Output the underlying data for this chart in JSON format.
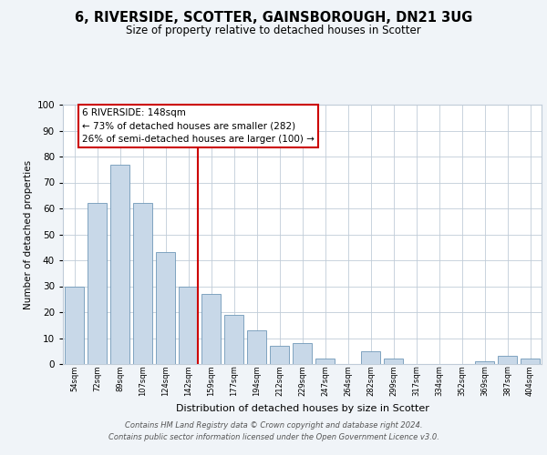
{
  "title": "6, RIVERSIDE, SCOTTER, GAINSBOROUGH, DN21 3UG",
  "subtitle": "Size of property relative to detached houses in Scotter",
  "xlabel": "Distribution of detached houses by size in Scotter",
  "ylabel": "Number of detached properties",
  "bar_color": "#c8d8e8",
  "bar_edge_color": "#7098b8",
  "background_color": "#f0f4f8",
  "plot_bg_color": "#ffffff",
  "grid_color": "#c0ccd8",
  "vline_color": "#cc0000",
  "annotation_title": "6 RIVERSIDE: 148sqm",
  "annotation_line1": "← 73% of detached houses are smaller (282)",
  "annotation_line2": "26% of semi-detached houses are larger (100) →",
  "annotation_box_color": "#ffffff",
  "annotation_box_edge": "#cc0000",
  "categories": [
    "54sqm",
    "72sqm",
    "89sqm",
    "107sqm",
    "124sqm",
    "142sqm",
    "159sqm",
    "177sqm",
    "194sqm",
    "212sqm",
    "229sqm",
    "247sqm",
    "264sqm",
    "282sqm",
    "299sqm",
    "317sqm",
    "334sqm",
    "352sqm",
    "369sqm",
    "387sqm",
    "404sqm"
  ],
  "values": [
    30,
    62,
    77,
    62,
    43,
    30,
    27,
    19,
    13,
    7,
    8,
    2,
    0,
    5,
    2,
    0,
    0,
    0,
    1,
    3,
    2
  ],
  "ylim": [
    0,
    100
  ],
  "yticks": [
    0,
    10,
    20,
    30,
    40,
    50,
    60,
    70,
    80,
    90,
    100
  ],
  "vline_category": "142sqm",
  "footer_line1": "Contains HM Land Registry data © Crown copyright and database right 2024.",
  "footer_line2": "Contains public sector information licensed under the Open Government Licence v3.0."
}
